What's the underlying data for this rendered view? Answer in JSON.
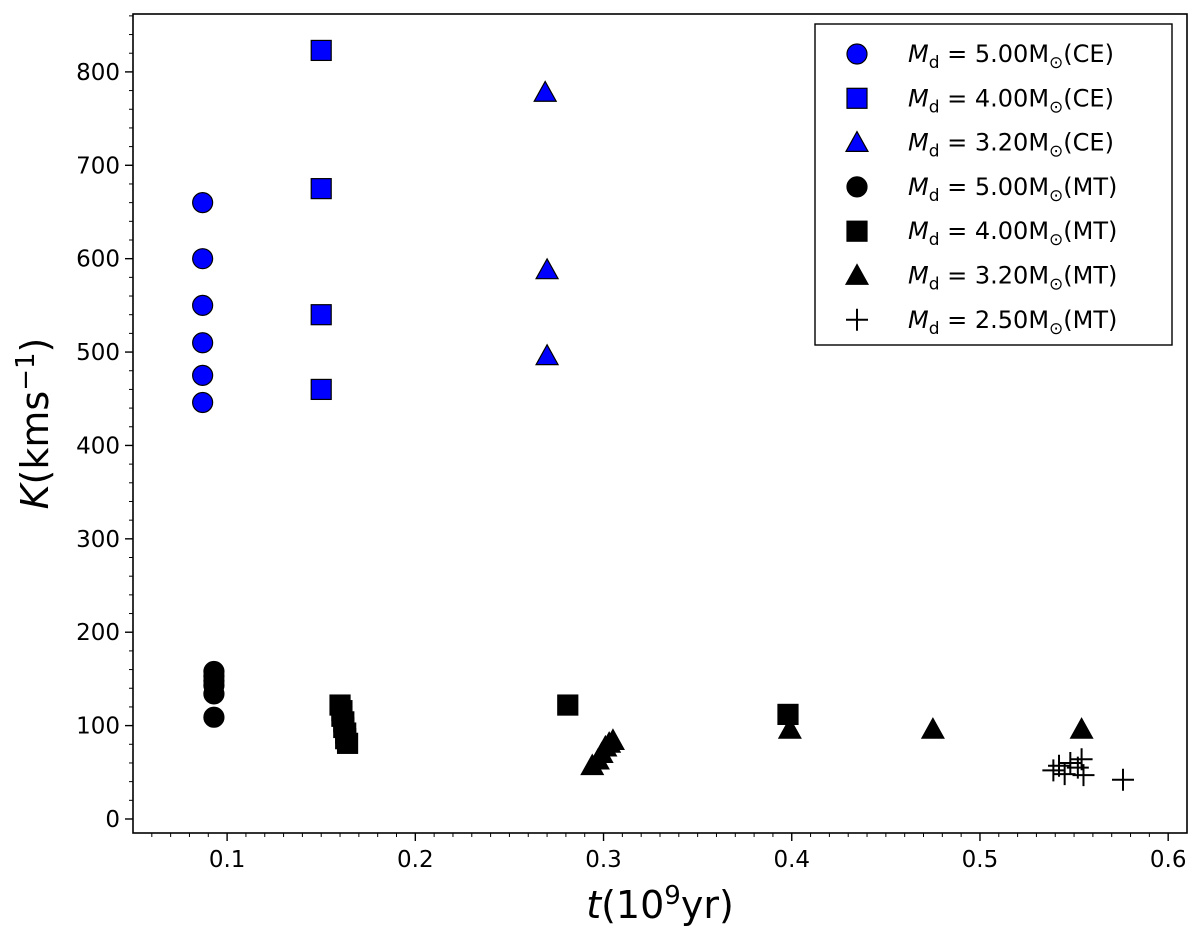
{
  "chart_data": {
    "type": "scatter",
    "x_axis": {
      "label_var": "t",
      "label_unit_pre": "(10",
      "label_unit_sup": "9",
      "label_unit_post": "yr)",
      "min": 0.05,
      "max": 0.61,
      "ticks": [
        0.1,
        0.2,
        0.3,
        0.4,
        0.5,
        0.6
      ],
      "tick_labels": [
        "0.1",
        "0.2",
        "0.3",
        "0.4",
        "0.5",
        "0.6"
      ]
    },
    "y_axis": {
      "label_var": "K",
      "label_unit_pre": "(kms",
      "label_unit_sup": "−1",
      "label_unit_post": ")",
      "min": -15,
      "max": 862,
      "ticks": [
        0,
        100,
        200,
        300,
        400,
        500,
        600,
        700,
        800
      ],
      "tick_labels": [
        "0",
        "100",
        "200",
        "300",
        "400",
        "500",
        "600",
        "700",
        "800"
      ]
    },
    "grid": false,
    "legend_position": "top-right",
    "series": [
      {
        "name": "M_d = 5.00M_sun (CE)",
        "legend": {
          "var": "M",
          "sub": "d",
          "eq": " = 5.00M",
          "sun": "⊙",
          "tail": "(CE)"
        },
        "marker": "circle",
        "color": "#0000ff",
        "points": [
          [
            0.087,
            660
          ],
          [
            0.087,
            600
          ],
          [
            0.087,
            550
          ],
          [
            0.087,
            510
          ],
          [
            0.087,
            475
          ],
          [
            0.087,
            446
          ]
        ]
      },
      {
        "name": "M_d = 4.00M_sun (CE)",
        "legend": {
          "var": "M",
          "sub": "d",
          "eq": " = 4.00M",
          "sun": "⊙",
          "tail": "(CE)"
        },
        "marker": "square",
        "color": "#0000ff",
        "points": [
          [
            0.15,
            823
          ],
          [
            0.15,
            675
          ],
          [
            0.15,
            540
          ],
          [
            0.15,
            460
          ]
        ]
      },
      {
        "name": "M_d = 3.20M_sun (CE)",
        "legend": {
          "var": "M",
          "sub": "d",
          "eq": " = 3.20M",
          "sun": "⊙",
          "tail": "(CE)"
        },
        "marker": "triangle",
        "color": "#0000ff",
        "points": [
          [
            0.269,
            778
          ],
          [
            0.27,
            588
          ],
          [
            0.27,
            496
          ]
        ]
      },
      {
        "name": "M_d = 5.00M_sun (MT)",
        "legend": {
          "var": "M",
          "sub": "d",
          "eq": " = 5.00M",
          "sun": "⊙",
          "tail": "(MT)"
        },
        "marker": "circle",
        "color": "#000000",
        "points": [
          [
            0.093,
            158
          ],
          [
            0.093,
            153
          ],
          [
            0.093,
            148
          ],
          [
            0.093,
            143
          ],
          [
            0.093,
            134
          ],
          [
            0.093,
            109
          ]
        ]
      },
      {
        "name": "M_d = 4.00M_sun (MT)",
        "legend": {
          "var": "M",
          "sub": "d",
          "eq": " = 4.00M",
          "sun": "⊙",
          "tail": "(MT)"
        },
        "marker": "square",
        "color": "#000000",
        "points": [
          [
            0.16,
            122
          ],
          [
            0.161,
            116
          ],
          [
            0.161,
            110
          ],
          [
            0.162,
            104
          ],
          [
            0.162,
            98
          ],
          [
            0.163,
            92
          ],
          [
            0.163,
            86
          ],
          [
            0.164,
            81
          ],
          [
            0.281,
            122
          ],
          [
            0.398,
            112
          ]
        ]
      },
      {
        "name": "M_d = 3.20M_sun (MT)",
        "legend": {
          "var": "M",
          "sub": "d",
          "eq": " = 3.20M",
          "sun": "⊙",
          "tail": "(MT)"
        },
        "marker": "triangle",
        "color": "#000000",
        "points": [
          [
            0.294,
            57
          ],
          [
            0.297,
            63
          ],
          [
            0.299,
            70
          ],
          [
            0.301,
            77
          ],
          [
            0.303,
            81
          ],
          [
            0.305,
            84
          ],
          [
            0.399,
            96
          ],
          [
            0.475,
            96
          ],
          [
            0.554,
            96
          ]
        ]
      },
      {
        "name": "M_d = 2.50M_sun (MT)",
        "legend": {
          "var": "M",
          "sub": "d",
          "eq": " = 2.50M",
          "sun": "⊙",
          "tail": "(MT)"
        },
        "marker": "plus",
        "color": "#000000",
        "points": [
          [
            0.539,
            52
          ],
          [
            0.542,
            57
          ],
          [
            0.545,
            48
          ],
          [
            0.548,
            60
          ],
          [
            0.552,
            55
          ],
          [
            0.554,
            64
          ],
          [
            0.555,
            47
          ],
          [
            0.576,
            42
          ]
        ]
      }
    ]
  }
}
